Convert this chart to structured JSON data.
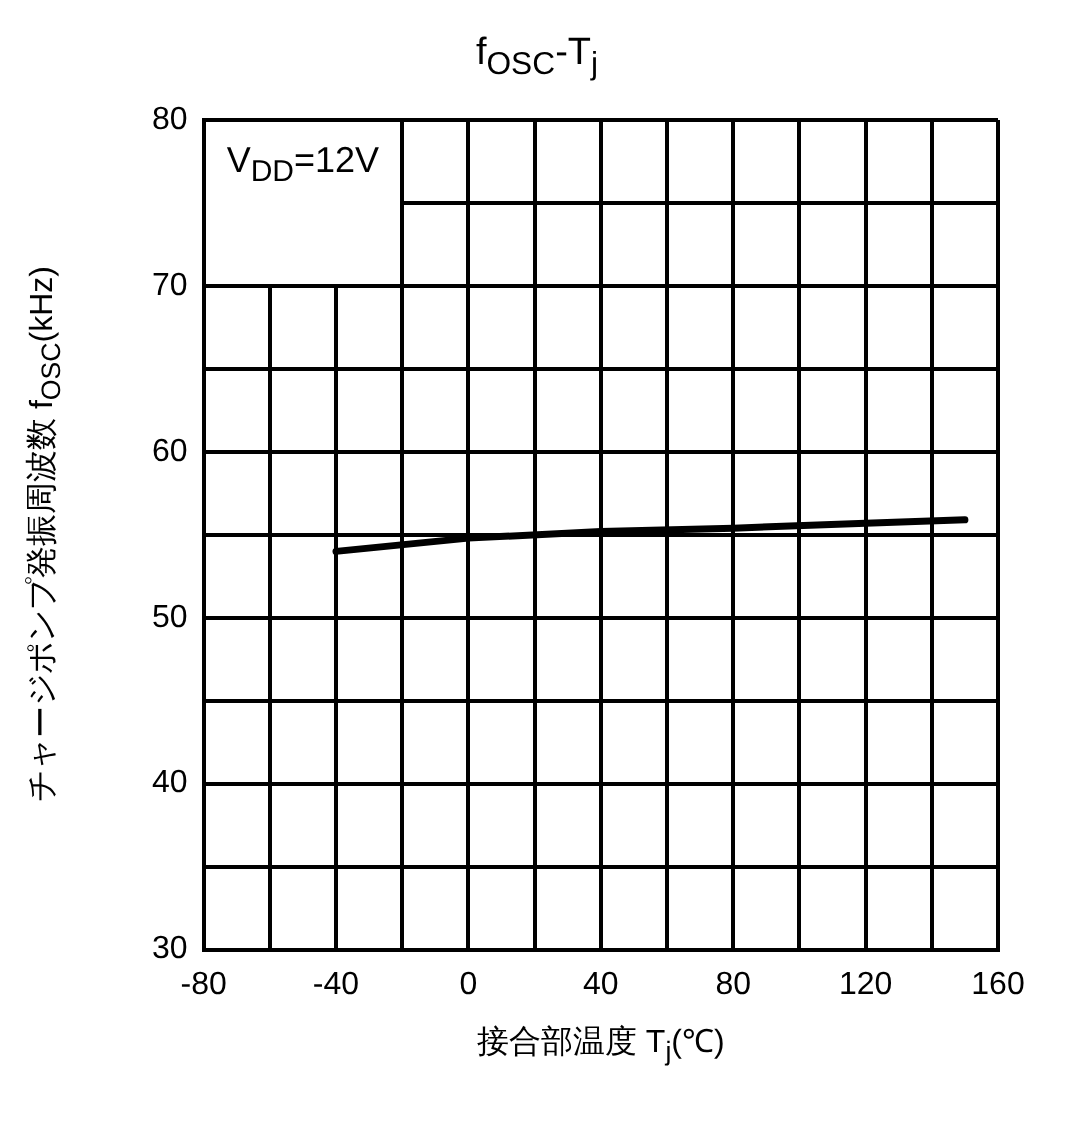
{
  "chart_data": {
    "type": "line",
    "title": "f$_{OSC}$-T$_{j}$",
    "xlabel": "接合部温度  T$_{j}$(℃)",
    "ylabel": "チャージポンプ発振周波数 f$_{OSC}$(kHz)",
    "annotations": [
      "V$_{DD}$=12V"
    ],
    "x": [
      -40,
      0,
      40,
      80,
      120,
      150
    ],
    "series": [
      {
        "color": "#000000",
        "values": [
          54.0,
          54.8,
          55.2,
          55.4,
          55.7,
          55.9
        ]
      }
    ],
    "xlim": [
      -80,
      160
    ],
    "xticks": [
      -80,
      {
        "value": -60,
        "label": null
      },
      -40,
      {
        "value": -20,
        "label": null
      },
      0,
      {
        "value": 20,
        "label": null
      },
      40,
      {
        "value": 60,
        "label": null
      },
      80,
      {
        "value": 100,
        "label": null
      },
      120,
      {
        "value": 140,
        "label": null
      },
      160
    ],
    "ylim": [
      30,
      80
    ],
    "yticks": [
      30,
      {
        "value": 35,
        "label": null
      },
      40,
      {
        "value": 45,
        "label": null
      },
      50,
      {
        "value": 55,
        "label": null
      },
      60,
      {
        "value": 65,
        "label": null
      },
      70,
      {
        "value": 75,
        "label": null
      },
      80
    ],
    "grid": true,
    "legend": false,
    "marker": "none",
    "line_style": "solid"
  }
}
